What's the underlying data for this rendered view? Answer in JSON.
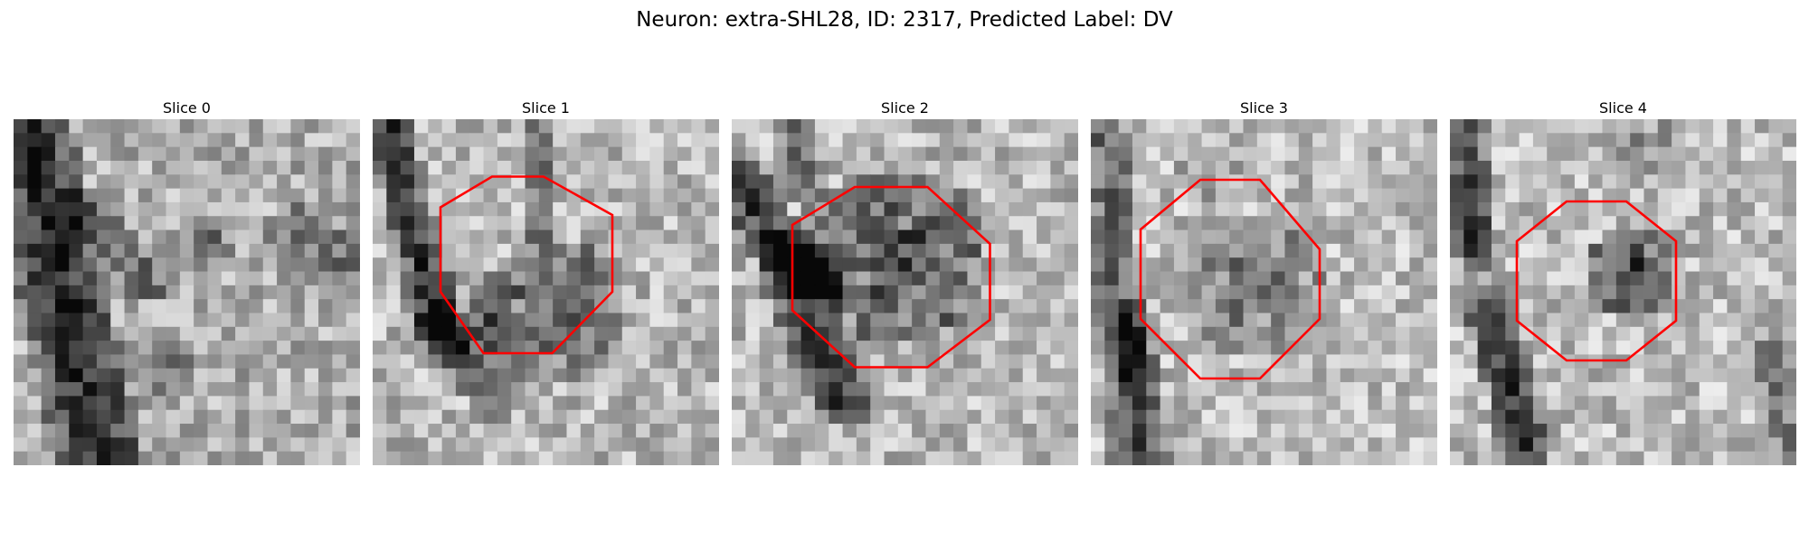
{
  "figure": {
    "title": "Neuron: extra-SHL28, ID: 2317, Predicted Label: DV"
  },
  "panels": [
    {
      "title": "Slice 0",
      "has_contour": false
    },
    {
      "title": "Slice 1",
      "has_contour": true
    },
    {
      "title": "Slice 2",
      "has_contour": true
    },
    {
      "title": "Slice 3",
      "has_contour": true
    },
    {
      "title": "Slice 4",
      "has_contour": true
    }
  ],
  "colors": {
    "contour": "#ff0000",
    "background": "#ffffff"
  }
}
